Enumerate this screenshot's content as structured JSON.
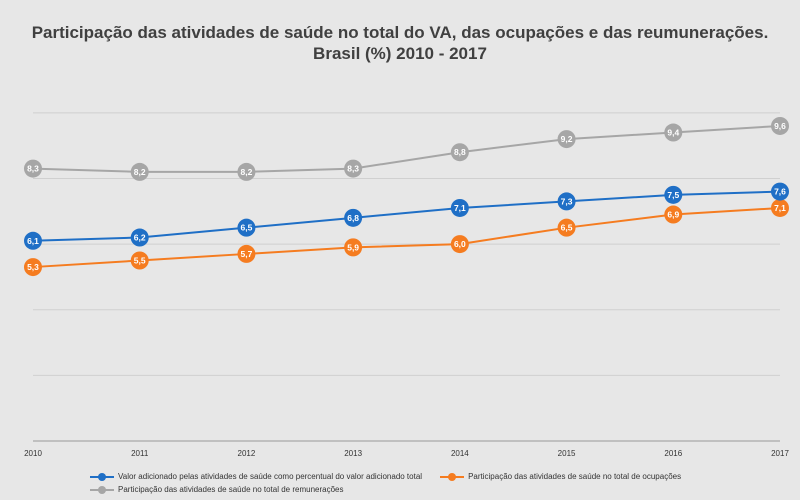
{
  "chart_data": {
    "type": "line",
    "title_line1": "Participação das atividades de saúde no total do VA, das ocupações e das reumunerações.",
    "title_line2": "Brasil (%)  2010 - 2017",
    "x": [
      "2010",
      "2011",
      "2012",
      "2013",
      "2014",
      "2015",
      "2016",
      "2017"
    ],
    "ylim": [
      0,
      11
    ],
    "grid": true,
    "legend_position": "bottom",
    "series": [
      {
        "name": "Valor adicionado pelas atividades de saúde como percentual do valor adicionado  total",
        "color": "#1f6fc6",
        "values": [
          6.1,
          6.2,
          6.5,
          6.8,
          7.1,
          7.3,
          7.5,
          7.6
        ],
        "labels": [
          "6,1",
          "6,2",
          "6,5",
          "6,8",
          "7,1",
          "7,3",
          "7,5",
          "7,6"
        ]
      },
      {
        "name": "Participação das atividades de saúde no total de ocupações",
        "color": "#f57c20",
        "values": [
          5.3,
          5.5,
          5.7,
          5.9,
          6.0,
          6.5,
          6.9,
          7.1
        ],
        "labels": [
          "5,3",
          "5,5",
          "5,7",
          "5,9",
          "6,0",
          "6,5",
          "6,9",
          "7,1"
        ]
      },
      {
        "name": "Participação das atividades de saúde no total de remunerações",
        "color": "#a6a6a6",
        "values": [
          8.3,
          8.2,
          8.2,
          8.3,
          8.8,
          9.2,
          9.4,
          9.6
        ],
        "labels": [
          "8,3",
          "8,2",
          "8,2",
          "8,3",
          "8,8",
          "9,2",
          "9,4",
          "9,6"
        ]
      }
    ]
  }
}
